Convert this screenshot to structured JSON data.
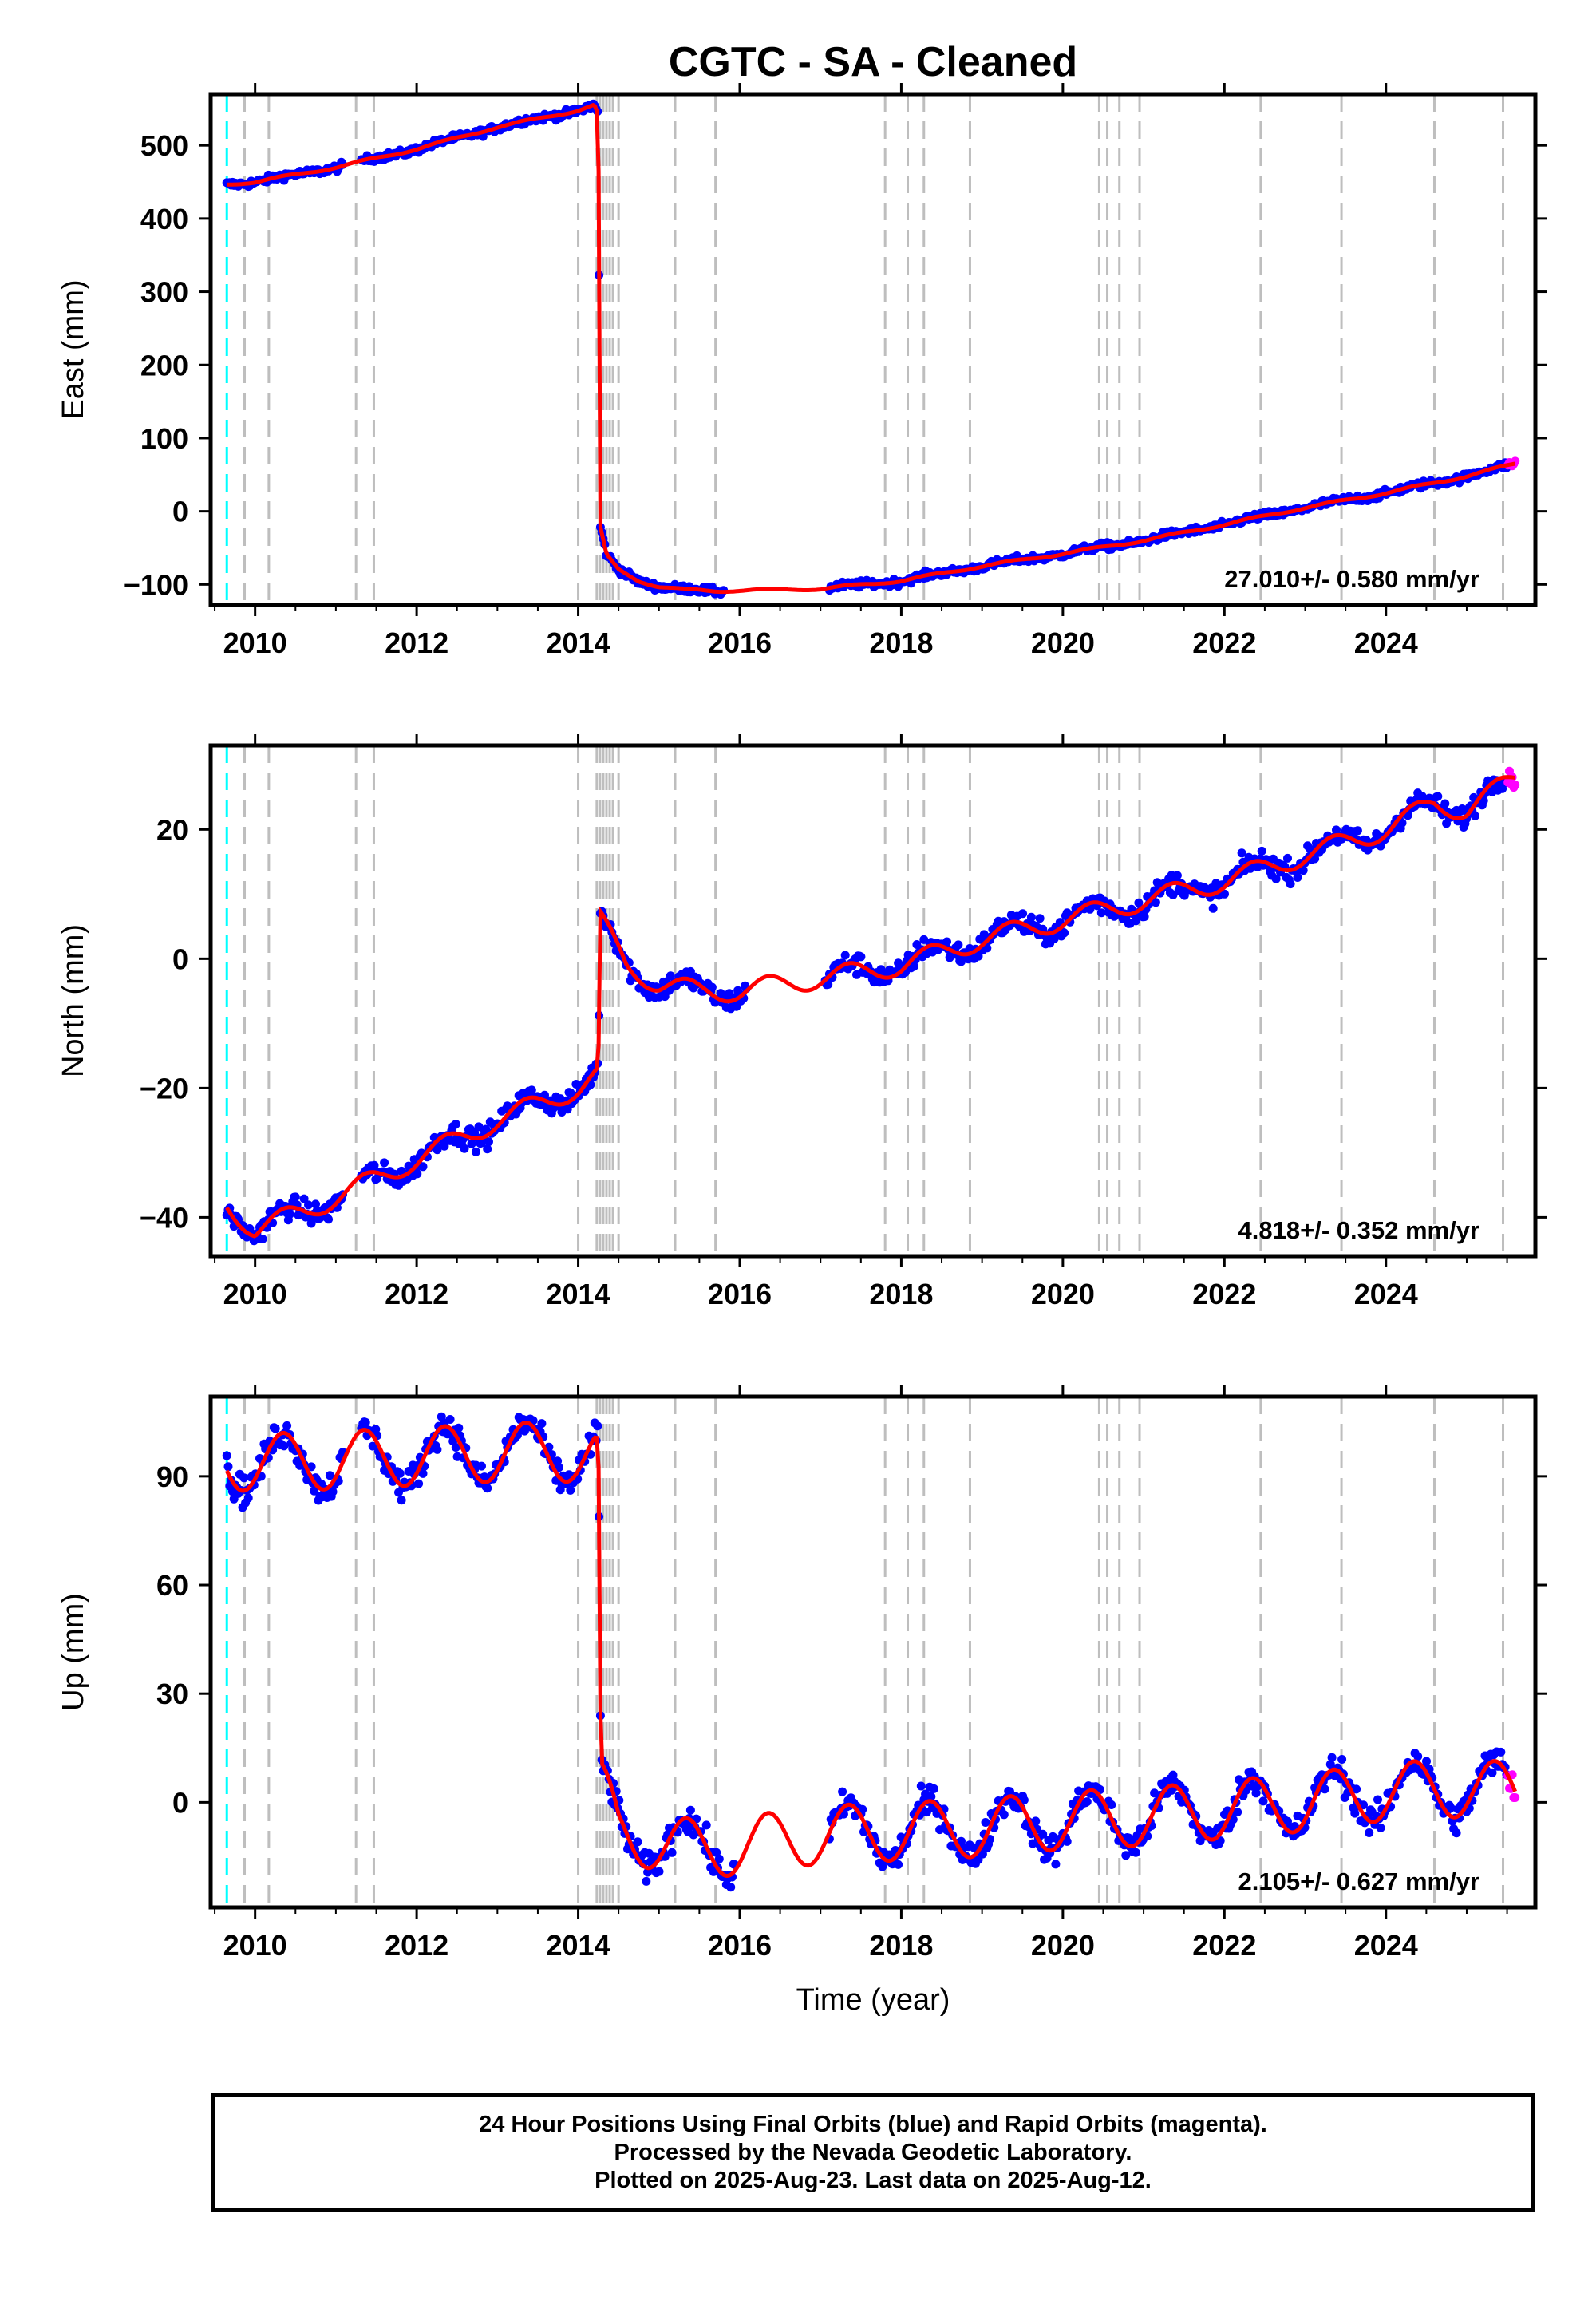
{
  "title": "CGTC  - SA - Cleaned",
  "x_axis_label": "Time (year)",
  "colors": {
    "final_orbits": "#0000ff",
    "rapid_orbits": "#ff00ff",
    "model_fit": "#ff0000",
    "antenna_change": "#00ffff",
    "event_lines": "#bebebe"
  },
  "footer": {
    "line1": "24 Hour Positions Using Final Orbits (blue) and Rapid Orbits (magenta).",
    "line2": "Processed by the Nevada Geodetic Laboratory.",
    "line3": "Plotted on 2025-Aug-23. Last data on 2025-Aug-12."
  },
  "chart_data": [
    {
      "type": "scatter",
      "component": "East",
      "ylabel": "East (mm)",
      "xlim": [
        2009.45,
        2025.85
      ],
      "ylim": [
        -128,
        570
      ],
      "x_ticks": [
        2010,
        2012,
        2014,
        2016,
        2018,
        2020,
        2022,
        2024
      ],
      "y_ticks": [
        -100,
        0,
        100,
        200,
        300,
        400,
        500
      ],
      "y_tick_labels": [
        "−100",
        "0",
        "100",
        "200",
        "300",
        "400",
        "500"
      ],
      "rate_label": "27.010+/- 0.580 mm/yr",
      "antenna_change": 2009.65,
      "events": [
        2009.87,
        2010.17,
        2011.25,
        2011.47,
        2014.0,
        2014.23,
        2014.27,
        2014.31,
        2014.35,
        2014.39,
        2014.43,
        2014.5,
        2015.2,
        2015.7,
        2017.8,
        2018.08,
        2018.28,
        2018.85,
        2020.45,
        2020.55,
        2020.7,
        2020.95,
        2022.45,
        2023.45,
        2024.6,
        2025.45
      ],
      "trend": [
        [
          2009.65,
          447
        ],
        [
          2010.0,
          450
        ],
        [
          2011.0,
          470
        ],
        [
          2012.0,
          495
        ],
        [
          2013.0,
          525
        ],
        [
          2014.0,
          548
        ],
        [
          2014.2,
          555
        ],
        [
          2014.25,
          540
        ],
        [
          2014.27,
          -20
        ],
        [
          2014.35,
          -60
        ],
        [
          2014.5,
          -80
        ],
        [
          2014.75,
          -95
        ],
        [
          2015.0,
          -103
        ],
        [
          2015.3,
          -107
        ],
        [
          2015.7,
          -109
        ],
        [
          2016.0,
          -108
        ],
        [
          2016.5,
          -107
        ],
        [
          2017.0,
          -106
        ],
        [
          2018.0,
          -95
        ],
        [
          2019.0,
          -75
        ],
        [
          2020.0,
          -58
        ],
        [
          2021.0,
          -40
        ],
        [
          2022.0,
          -18
        ],
        [
          2023.0,
          5
        ],
        [
          2024.0,
          25
        ],
        [
          2025.0,
          48
        ],
        [
          2025.6,
          65
        ]
      ],
      "gaps": [
        [
          2011.1,
          2011.3
        ],
        [
          2015.8,
          2017.1
        ]
      ],
      "noise": 3.5,
      "seasonal": 1.5,
      "rapid_tail": [
        2025.5,
        2025.62
      ]
    },
    {
      "type": "scatter",
      "component": "North",
      "ylabel": "North (mm)",
      "xlim": [
        2009.45,
        2025.85
      ],
      "ylim": [
        -46,
        33
      ],
      "x_ticks": [
        2010,
        2012,
        2014,
        2016,
        2018,
        2020,
        2022,
        2024
      ],
      "y_ticks": [
        -40,
        -20,
        0,
        20
      ],
      "y_tick_labels": [
        "−40",
        "−20",
        "0",
        "20"
      ],
      "rate_label": "4.818+/- 0.352 mm/yr",
      "antenna_change": 2009.65,
      "events": [
        2009.87,
        2010.17,
        2011.25,
        2011.47,
        2014.0,
        2014.23,
        2014.27,
        2014.31,
        2014.35,
        2014.39,
        2014.43,
        2014.5,
        2015.2,
        2015.7,
        2017.8,
        2018.08,
        2018.28,
        2018.85,
        2020.45,
        2020.55,
        2020.7,
        2020.95,
        2022.45,
        2023.45,
        2024.6,
        2025.45
      ],
      "trend": [
        [
          2009.65,
          -38
        ],
        [
          2010.0,
          -42
        ],
        [
          2011.0,
          -37
        ],
        [
          2012.0,
          -31
        ],
        [
          2013.0,
          -25
        ],
        [
          2014.0,
          -20
        ],
        [
          2014.25,
          -18
        ],
        [
          2014.27,
          6
        ],
        [
          2014.6,
          -1
        ],
        [
          2015.0,
          -4
        ],
        [
          2015.5,
          -5
        ],
        [
          2016.0,
          -5
        ],
        [
          2016.5,
          -4
        ],
        [
          2017.0,
          -3
        ],
        [
          2018.0,
          -1
        ],
        [
          2019.0,
          3
        ],
        [
          2020.0,
          6
        ],
        [
          2021.0,
          9
        ],
        [
          2022.0,
          12
        ],
        [
          2023.0,
          16
        ],
        [
          2024.0,
          20
        ],
        [
          2024.6,
          24
        ],
        [
          2025.0,
          23
        ],
        [
          2025.6,
          28
        ]
      ],
      "gaps": [
        [
          2011.1,
          2011.3
        ],
        [
          2016.1,
          2017.05
        ]
      ],
      "noise": 1.2,
      "seasonal": 1.6,
      "rapid_tail": [
        2025.5,
        2025.62
      ]
    },
    {
      "type": "scatter",
      "component": "Up",
      "ylabel": "Up (mm)",
      "xlim": [
        2009.45,
        2025.85
      ],
      "ylim": [
        -29,
        112
      ],
      "x_ticks": [
        2010,
        2012,
        2014,
        2016,
        2018,
        2020,
        2022,
        2024
      ],
      "y_ticks": [
        0,
        30,
        60,
        90
      ],
      "y_tick_labels": [
        "0",
        "30",
        "60",
        "90"
      ],
      "rate_label": "2.105+/- 0.627 mm/yr",
      "antenna_change": 2009.65,
      "events": [
        2009.87,
        2010.17,
        2011.25,
        2011.47,
        2014.0,
        2014.23,
        2014.27,
        2014.31,
        2014.35,
        2014.39,
        2014.43,
        2014.5,
        2015.2,
        2015.7,
        2017.8,
        2018.08,
        2018.28,
        2018.85,
        2020.45,
        2020.55,
        2020.7,
        2020.95,
        2022.45,
        2023.45,
        2024.6,
        2025.45
      ],
      "trend": [
        [
          2009.65,
          94
        ],
        [
          2010.5,
          94
        ],
        [
          2011.5,
          95
        ],
        [
          2012.5,
          96
        ],
        [
          2013.5,
          97
        ],
        [
          2014.2,
          96
        ],
        [
          2014.25,
          94
        ],
        [
          2014.28,
          4
        ],
        [
          2014.5,
          -8
        ],
        [
          2015.0,
          -11
        ],
        [
          2015.5,
          -13
        ],
        [
          2016.0,
          -12
        ],
        [
          2017.0,
          -9
        ],
        [
          2018.0,
          -8
        ],
        [
          2019.0,
          -7
        ],
        [
          2020.0,
          -5
        ],
        [
          2021.0,
          -4
        ],
        [
          2022.0,
          -2
        ],
        [
          2023.0,
          0
        ],
        [
          2024.0,
          3
        ],
        [
          2025.0,
          4
        ],
        [
          2025.6,
          3
        ]
      ],
      "gaps": [
        [
          2011.1,
          2011.3
        ],
        [
          2015.95,
          2017.1
        ]
      ],
      "noise": 3.0,
      "seasonal": 8.0,
      "rapid_tail": [
        2025.5,
        2025.62
      ]
    }
  ]
}
